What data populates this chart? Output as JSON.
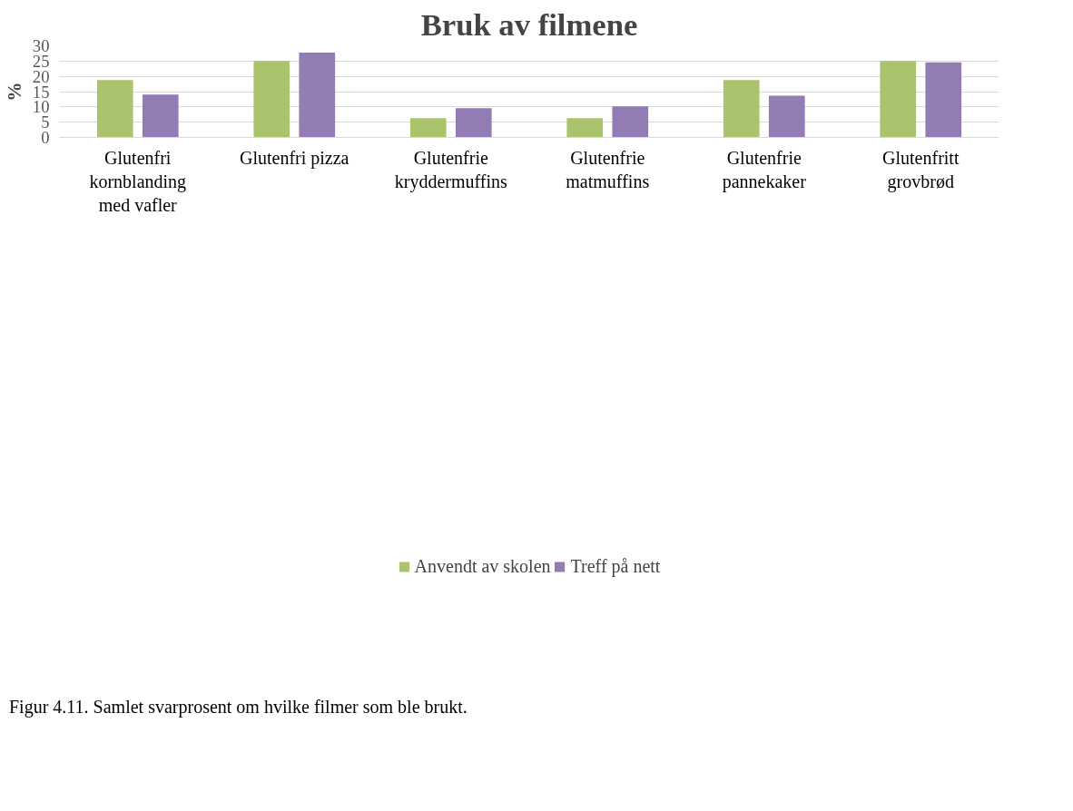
{
  "chart_data": {
    "type": "bar",
    "title": "Bruk av filmene",
    "ylabel": "%",
    "categories": [
      "Glutenfri\nkornblanding\nmed vafler",
      "Glutenfri pizza",
      "Glutenfrie\nkryddermuffins",
      "Glutenfrie\nmatmuffins",
      "Glutenfrie\npannekaker",
      "Glutenfritt\ngrovbrød"
    ],
    "series": [
      {
        "name": "Anvendt av skolen",
        "color": "#a9c46c",
        "values": [
          18.8,
          25,
          6.3,
          6.3,
          18.8,
          25
        ]
      },
      {
        "name": "Treff på nett",
        "color": "#937bb4",
        "values": [
          14.0,
          27.8,
          9.6,
          10.2,
          13.7,
          24.6
        ]
      }
    ],
    "ylim": [
      0,
      30
    ],
    "yticks": [
      0,
      5,
      10,
      15,
      20,
      25,
      30
    ],
    "grid": "y",
    "legend": "bottom",
    "annotations": [
      "Figur 4.11. Samlet svarprosent om hvilke filmer som ble brukt."
    ]
  }
}
